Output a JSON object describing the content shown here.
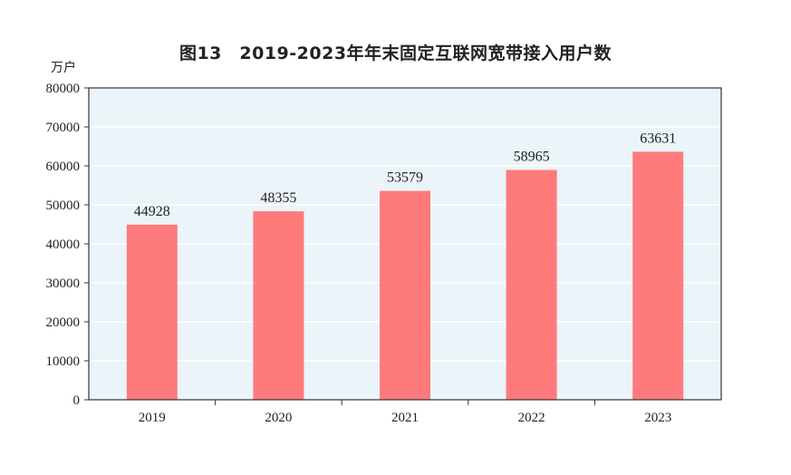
{
  "chart_data": {
    "type": "bar",
    "title": "图13　2019-2023年年末固定互联网宽带接入用户数",
    "ylabel": "万户",
    "xlabel": "",
    "categories": [
      "2019",
      "2020",
      "2021",
      "2022",
      "2023"
    ],
    "values": [
      44928,
      48355,
      53579,
      58965,
      63631
    ],
    "ylim": [
      0,
      80000
    ],
    "yticks": [
      0,
      10000,
      20000,
      30000,
      40000,
      50000,
      60000,
      70000,
      80000
    ],
    "grid": true,
    "data_labels": true,
    "colors": {
      "bar": "#ff7b7b",
      "plot_background": "#eaf4f9",
      "gridline": "#ffffff",
      "axis": "#333333"
    }
  }
}
